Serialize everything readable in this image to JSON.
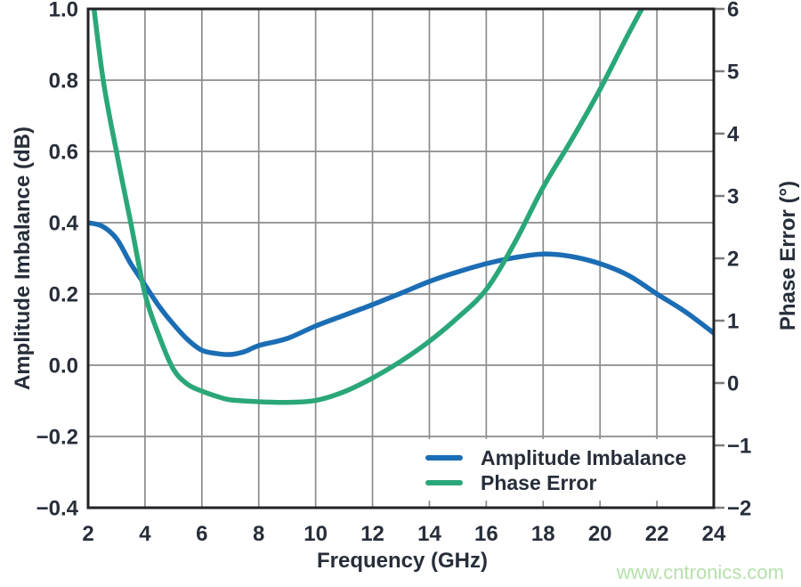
{
  "figure": {
    "watermark": "www.cntronics.com"
  },
  "axes": {
    "x": {
      "title": "Frequency (GHz)",
      "range": [
        2,
        24
      ],
      "tick_values": [
        2,
        4,
        6,
        8,
        10,
        12,
        14,
        16,
        18,
        20,
        22,
        24
      ],
      "tick_labels": [
        "2",
        "4",
        "6",
        "8",
        "10",
        "12",
        "14",
        "16",
        "18",
        "20",
        "22",
        "24"
      ]
    },
    "left": {
      "title": "Amplitude Imbalance (dB)",
      "range": [
        -0.4,
        1.0
      ],
      "tick_values": [
        1.0,
        0.8,
        0.6,
        0.4,
        0.2,
        0.0,
        -0.2,
        -0.4
      ],
      "tick_labels": [
        "1.0",
        "0.8",
        "0.6",
        "0.4",
        "0.2",
        "0.0",
        "−0.2",
        "−0.4"
      ]
    },
    "right": {
      "title": "Phase Error (°)",
      "range": [
        -2,
        6
      ],
      "tick_values": [
        6,
        5,
        4,
        3,
        2,
        1,
        0,
        -1,
        -2
      ],
      "tick_labels": [
        "6",
        "5",
        "4",
        "3",
        "2",
        "1",
        "0",
        "−1",
        "−2"
      ]
    }
  },
  "legend": {
    "items": [
      {
        "label": "Amplitude Imbalance",
        "color_key": "amplitude"
      },
      {
        "label": "Phase Error",
        "color_key": "phase"
      }
    ]
  },
  "colors": {
    "amplitude": "#1b6db4",
    "phase": "#2aa778",
    "grid": "#8c8c8c",
    "frame": "#212226",
    "tick_text": "#272e3a",
    "right_tick": "#7d7d7d",
    "watermark": "#b6e0ab",
    "background": "#ffffff"
  },
  "chart_data": {
    "type": "line",
    "title": "",
    "xlabel": "Frequency (GHz)",
    "ylabel_left": "Amplitude Imbalance (dB)",
    "ylabel_right": "Phase Error (°)",
    "xlim": [
      2,
      24
    ],
    "ylim_left": [
      -0.4,
      1.0
    ],
    "ylim_right": [
      -2,
      6
    ],
    "grid": true,
    "legend_position": "lower right inside",
    "series": [
      {
        "name": "Amplitude Imbalance",
        "yaxis": "left",
        "color_key": "amplitude",
        "x": [
          2.0,
          2.5,
          3.0,
          3.5,
          4.0,
          4.5,
          5.0,
          5.5,
          6.0,
          6.5,
          7.0,
          7.5,
          8.0,
          9.0,
          10.0,
          11.0,
          12.0,
          13.0,
          14.0,
          15.0,
          16.0,
          17.0,
          18.0,
          19.0,
          20.0,
          21.0,
          22.0,
          23.0,
          24.0
        ],
        "y": [
          0.4,
          0.39,
          0.355,
          0.285,
          0.225,
          0.165,
          0.115,
          0.072,
          0.042,
          0.033,
          0.03,
          0.038,
          0.055,
          0.075,
          0.11,
          0.14,
          0.17,
          0.202,
          0.235,
          0.262,
          0.285,
          0.302,
          0.312,
          0.305,
          0.285,
          0.252,
          0.2,
          0.15,
          0.09
        ]
      },
      {
        "name": "Phase Error",
        "yaxis": "right",
        "color_key": "phase",
        "x": [
          2.0,
          2.5,
          3.0,
          3.5,
          4.0,
          4.5,
          5.0,
          5.5,
          6.0,
          6.5,
          7.0,
          8.0,
          9.0,
          10.0,
          11.0,
          12.0,
          13.0,
          14.0,
          15.0,
          16.0,
          17.0,
          18.0,
          19.0,
          20.0,
          21.0,
          22.0
        ],
        "y": [
          6.8,
          4.95,
          3.7,
          2.57,
          1.43,
          0.75,
          0.22,
          -0.02,
          -0.13,
          -0.21,
          -0.27,
          -0.3,
          -0.31,
          -0.28,
          -0.14,
          0.08,
          0.35,
          0.67,
          1.05,
          1.5,
          2.25,
          3.14,
          3.9,
          4.71,
          5.6,
          6.45
        ]
      }
    ]
  }
}
